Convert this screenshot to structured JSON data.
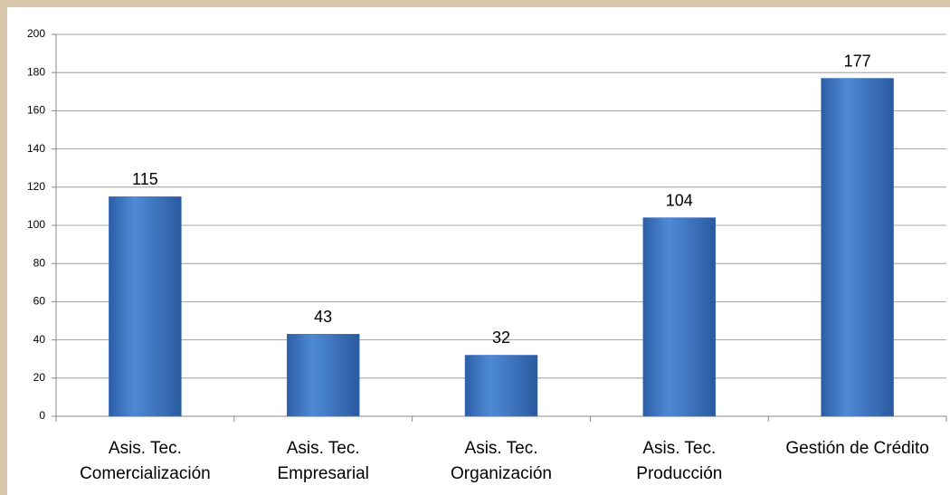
{
  "chart_data": {
    "type": "bar",
    "categories": [
      [
        "Asis. Tec.",
        "Comercialización"
      ],
      [
        "Asis. Tec.",
        "Empresarial"
      ],
      [
        "Asis. Tec.",
        "Organización"
      ],
      [
        "Asis. Tec.",
        "Producción"
      ],
      [
        "Gestión de Crédito"
      ]
    ],
    "values": [
      115,
      43,
      32,
      104,
      177
    ],
    "color": "#3b74c4",
    "ylim": [
      0,
      200
    ],
    "yticks": [
      0,
      20,
      40,
      60,
      80,
      100,
      120,
      140,
      160,
      180,
      200
    ],
    "grid": true
  }
}
